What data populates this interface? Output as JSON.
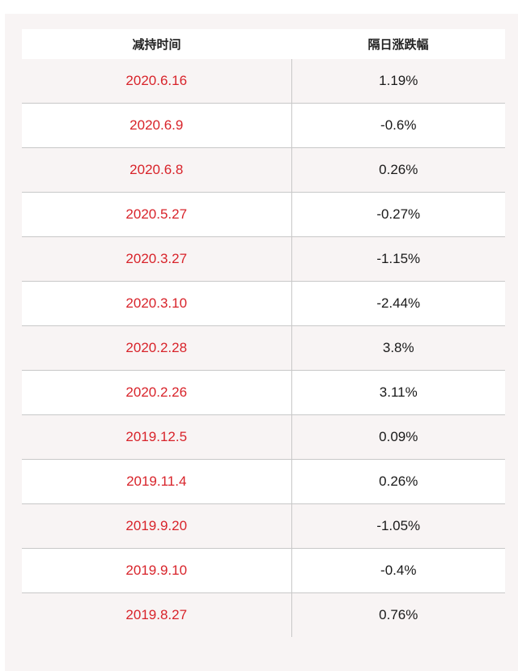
{
  "table": {
    "headers": [
      "减持时间",
      "隔日涨跌幅"
    ],
    "rows": [
      {
        "date": "2020.6.16",
        "change": "1.19%"
      },
      {
        "date": "2020.6.9",
        "change": "-0.6%"
      },
      {
        "date": "2020.6.8",
        "change": "0.26%"
      },
      {
        "date": "2020.5.27",
        "change": "-0.27%"
      },
      {
        "date": "2020.3.27",
        "change": "-1.15%"
      },
      {
        "date": "2020.3.10",
        "change": "-2.44%"
      },
      {
        "date": "2020.2.28",
        "change": "3.8%"
      },
      {
        "date": "2020.2.26",
        "change": "3.11%"
      },
      {
        "date": "2019.12.5",
        "change": "0.09%"
      },
      {
        "date": "2019.11.4",
        "change": "0.26%"
      },
      {
        "date": "2019.9.20",
        "change": "-1.05%"
      },
      {
        "date": "2019.9.10",
        "change": "-0.4%"
      },
      {
        "date": "2019.8.27",
        "change": "0.76%"
      }
    ]
  },
  "colors": {
    "date_text": "#d8232a",
    "panel_bg": "#f8f4f4",
    "divider": "#c8c8c8"
  }
}
